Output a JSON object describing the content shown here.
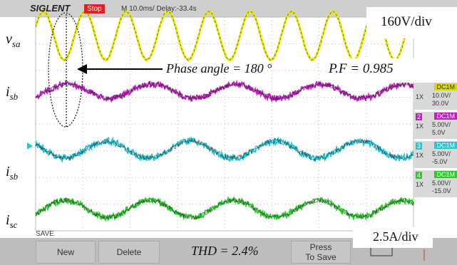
{
  "header": {
    "brand": "SIGLENT",
    "status": "Stop",
    "timebase": "M 10.0ms/ Delay:-33.4s"
  },
  "annotations": {
    "voltage_scale": "160V/div",
    "current_scale": "2.5A/div",
    "phase_angle": "Phase angle = 180 °",
    "power_factor": "P.F = 0.985",
    "thd": "THD = 2.4%"
  },
  "trace_labels": [
    {
      "symbol": "v",
      "subscript": "sa"
    },
    {
      "symbol": "i",
      "subscript": "sb"
    },
    {
      "symbol": "i",
      "subscript": "sb"
    },
    {
      "symbol": "i",
      "subscript": "sc"
    }
  ],
  "channels": [
    {
      "coupling": "DC1M",
      "probe": "1X",
      "scale": "10.0V/",
      "offset": "30.0V"
    },
    {
      "number": "2",
      "coupling": "DC1M",
      "probe": "1X",
      "scale": "5.00V/",
      "offset": "5.0V"
    },
    {
      "number": "3",
      "coupling": "DC1M",
      "probe": "1X",
      "scale": "5.00V/",
      "offset": "-5.0V"
    },
    {
      "number": "4",
      "coupling": "DC1M",
      "probe": "1X",
      "scale": "5.00V/",
      "offset": "-15.0V"
    }
  ],
  "menu": {
    "title": "SAVE",
    "buttons": [
      "New",
      "Delete",
      "Press To Save"
    ]
  }
}
